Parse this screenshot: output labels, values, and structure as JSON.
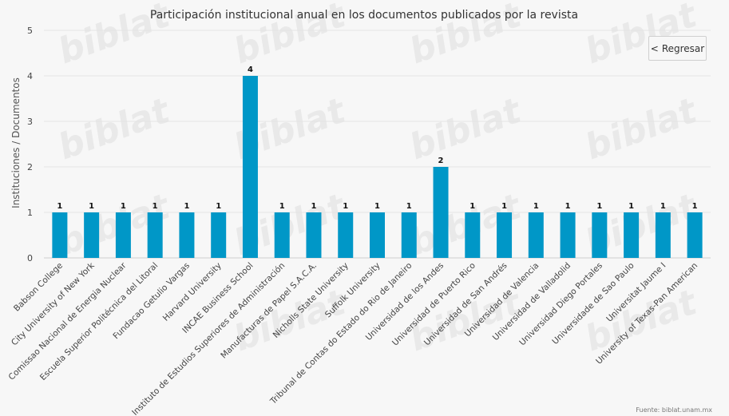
{
  "back_button": {
    "label": "Regresar",
    "icon": "chevron-left-icon"
  },
  "credit": "Fuente: biblat.unam.mx",
  "watermark": "biblat",
  "chart_data": {
    "type": "bar",
    "title": "Participación institucional anual en los documentos publicados por la revista",
    "ylabel": "Instituciones / Documentos",
    "xlabel": "",
    "ylim": [
      0,
      5
    ],
    "yticks": [
      0,
      1,
      2,
      3,
      4,
      5
    ],
    "grid": true,
    "bar_color": "#0097c7",
    "categories": [
      "Babson College",
      "City University of New York",
      "Comissao Nacional de Energia Nuclear",
      "Escuela Superior Politécnica del Litoral",
      "Fundacao Getulio Vargas",
      "Harvard University",
      "INCAE Business School",
      "Instituto de Estudios Superiores de Administración",
      "Manufacturas de Papel S.A.C.A.",
      "Nicholls State University",
      "Suffolk University",
      "Tribunal de Contas do Estado do Rio de Janeiro",
      "Universidad de los Andes",
      "Universidad de Puerto Rico",
      "Universidad de San Andrés",
      "Universidad de Valencia",
      "Universidad de Valladolid",
      "Universidad Diego Portales",
      "Universidade de Sao Paulo",
      "Universitat Jaume I",
      "University of Texas-Pan American"
    ],
    "values": [
      1,
      1,
      1,
      1,
      1,
      1,
      4,
      1,
      1,
      1,
      1,
      1,
      2,
      1,
      1,
      1,
      1,
      1,
      1,
      1,
      1
    ]
  }
}
